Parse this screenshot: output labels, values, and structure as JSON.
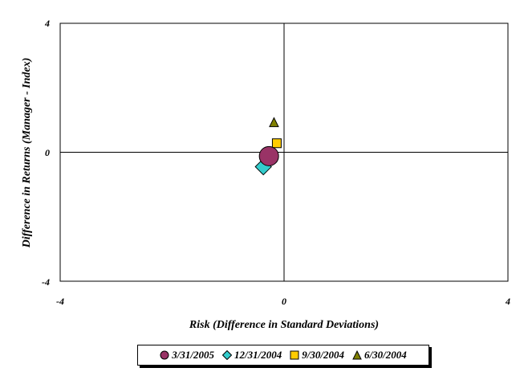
{
  "chart_data": {
    "type": "scatter",
    "xlabel": "Risk (Difference in Standard Deviations)",
    "ylabel": "Difference in Returns (Manager - Index)",
    "xlim": [
      -4,
      4
    ],
    "ylim": [
      -4,
      4
    ],
    "x_ticks": [
      "-4",
      "0",
      "4"
    ],
    "y_ticks": [
      "4",
      "0",
      "-4"
    ],
    "grid": false,
    "legend_position": "bottom",
    "series": [
      {
        "name": "3/31/2005",
        "marker": "circle",
        "color": "#993366",
        "x": -0.27,
        "y": -0.12
      },
      {
        "name": "12/31/2004",
        "marker": "diamond",
        "color": "#33CCCC",
        "x": -0.37,
        "y": -0.45
      },
      {
        "name": "9/30/2004",
        "marker": "square",
        "color": "#FFCC00",
        "x": -0.13,
        "y": 0.28
      },
      {
        "name": "6/30/2004",
        "marker": "triangle",
        "color": "#808000",
        "x": -0.18,
        "y": 0.92
      }
    ]
  }
}
